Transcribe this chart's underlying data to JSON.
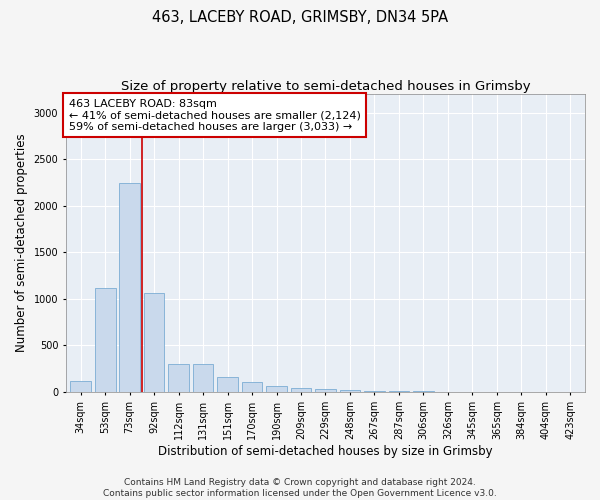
{
  "title": "463, LACEBY ROAD, GRIMSBY, DN34 5PA",
  "subtitle": "Size of property relative to semi-detached houses in Grimsby",
  "xlabel": "Distribution of semi-detached houses by size in Grimsby",
  "ylabel": "Number of semi-detached properties",
  "footer1": "Contains HM Land Registry data © Crown copyright and database right 2024.",
  "footer2": "Contains public sector information licensed under the Open Government Licence v3.0.",
  "annotation_title": "463 LACEBY ROAD: 83sqm",
  "annotation_line1": "← 41% of semi-detached houses are smaller (2,124)",
  "annotation_line2": "59% of semi-detached houses are larger (3,033) →",
  "categories": [
    "34sqm",
    "53sqm",
    "73sqm",
    "92sqm",
    "112sqm",
    "131sqm",
    "151sqm",
    "170sqm",
    "190sqm",
    "209sqm",
    "229sqm",
    "248sqm",
    "267sqm",
    "287sqm",
    "306sqm",
    "326sqm",
    "345sqm",
    "365sqm",
    "384sqm",
    "404sqm",
    "423sqm"
  ],
  "values": [
    115,
    1120,
    2250,
    1060,
    305,
    305,
    160,
    110,
    65,
    45,
    28,
    18,
    12,
    8,
    5,
    4,
    3,
    2,
    2,
    1,
    1
  ],
  "bar_color": "#c9d9ec",
  "bar_edge_color": "#7badd4",
  "background_color": "#e8eef5",
  "annotation_box_color": "#ffffff",
  "annotation_box_edge": "#cc0000",
  "vline_color": "#cc0000",
  "ylim": [
    0,
    3200
  ],
  "yticks": [
    0,
    500,
    1000,
    1500,
    2000,
    2500,
    3000
  ],
  "grid_color": "#d0d8e8",
  "title_fontsize": 10.5,
  "subtitle_fontsize": 9.5,
  "ylabel_fontsize": 8.5,
  "xlabel_fontsize": 8.5,
  "tick_fontsize": 7,
  "annotation_fontsize": 8,
  "footer_fontsize": 6.5,
  "vline_x": 2.5
}
